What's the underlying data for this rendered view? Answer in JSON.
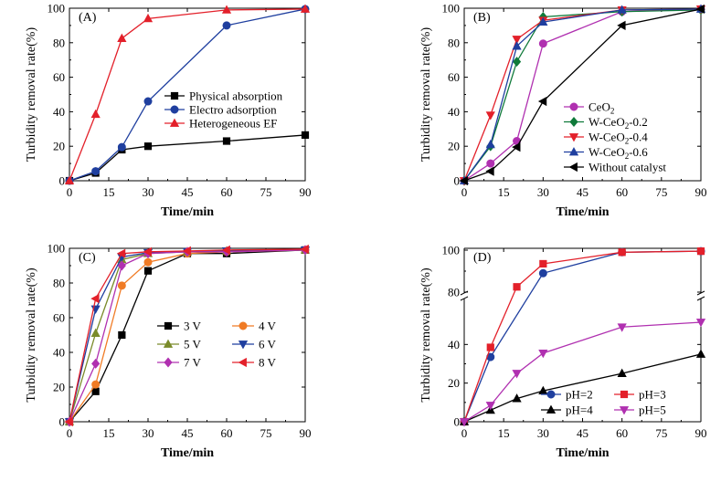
{
  "chart_data": [
    {
      "type": "line",
      "panel_label": "(A)",
      "xlabel": "Time/min",
      "ylabel": "Turbidity removal rate(%)",
      "xlim": [
        0,
        90
      ],
      "ylim": [
        0,
        100
      ],
      "xticks": [
        0,
        15,
        30,
        45,
        60,
        75,
        90
      ],
      "yticks": [
        0,
        20,
        40,
        60,
        80,
        100
      ],
      "legend_position": "center-right",
      "series": [
        {
          "name": "Physical absorption",
          "color": "#000000",
          "marker": "square",
          "x": [
            0,
            10,
            20,
            30,
            60,
            90
          ],
          "y": [
            0,
            4.5,
            18,
            20,
            23,
            26.5
          ]
        },
        {
          "name": "Electro adsorption",
          "color": "#1f3f9f",
          "marker": "circle",
          "x": [
            0,
            10,
            20,
            30,
            60,
            90
          ],
          "y": [
            0,
            5.5,
            19.5,
            46,
            90,
            99.5
          ]
        },
        {
          "name": "Heterogeneous EF",
          "color": "#e3202a",
          "marker": "triangle-up",
          "x": [
            0,
            10,
            20,
            30,
            60,
            90
          ],
          "y": [
            0,
            38.5,
            82.5,
            94,
            99,
            99.5
          ]
        }
      ]
    },
    {
      "type": "line",
      "panel_label": "(B)",
      "xlabel": "Time/min",
      "ylabel": "Turbidity removal rate(%)",
      "xlim": [
        0,
        90
      ],
      "ylim": [
        0,
        100
      ],
      "xticks": [
        0,
        15,
        30,
        45,
        60,
        75,
        90
      ],
      "yticks": [
        0,
        20,
        40,
        60,
        80,
        100
      ],
      "legend_position": "bottom-right",
      "series": [
        {
          "name": "CeO",
          "sub": "2",
          "rest": "",
          "color": "#b030b0",
          "marker": "circle",
          "x": [
            0,
            10,
            20,
            30,
            60,
            90
          ],
          "y": [
            0,
            10,
            23,
            79.5,
            98,
            99.5
          ]
        },
        {
          "name": "W-CeO",
          "sub": "2",
          "rest": "-0.2",
          "color": "#0f7a3a",
          "marker": "diamond",
          "x": [
            0,
            10,
            20,
            30,
            60,
            90
          ],
          "y": [
            0,
            20,
            69,
            95,
            98,
            99
          ]
        },
        {
          "name": "W-CeO",
          "sub": "2",
          "rest": "-0.4",
          "color": "#e3202a",
          "marker": "triangle-down",
          "x": [
            0,
            10,
            20,
            30,
            60,
            90
          ],
          "y": [
            0,
            38,
            82,
            93,
            99,
            99.5
          ]
        },
        {
          "name": "W-CeO",
          "sub": "2",
          "rest": "-0.6",
          "color": "#1f3f9f",
          "marker": "triangle-up",
          "x": [
            0,
            10,
            20,
            30,
            60,
            90
          ],
          "y": [
            0,
            21,
            78,
            92,
            99,
            99.5
          ]
        },
        {
          "name": "Without catalyst",
          "sub": "",
          "rest": "",
          "color": "#000000",
          "marker": "triangle-left",
          "x": [
            0,
            10,
            20,
            30,
            60,
            90
          ],
          "y": [
            0,
            5.5,
            19.5,
            46,
            90,
            99.5
          ]
        }
      ]
    },
    {
      "type": "line",
      "panel_label": "(C)",
      "xlabel": "Time/min",
      "ylabel": "Turbidity removal rate(%)",
      "xlim": [
        0,
        90
      ],
      "ylim": [
        0,
        100
      ],
      "xticks": [
        0,
        15,
        30,
        45,
        60,
        75,
        90
      ],
      "yticks": [
        0,
        20,
        40,
        60,
        80,
        100
      ],
      "legend_position": "center-right",
      "series": [
        {
          "name": "3 V",
          "color": "#000000",
          "marker": "square",
          "x": [
            0,
            10,
            20,
            30,
            45,
            60,
            90
          ],
          "y": [
            0,
            17.5,
            50,
            87,
            97,
            97,
            99
          ]
        },
        {
          "name": "4 V",
          "color": "#f07b25",
          "marker": "circle",
          "x": [
            0,
            10,
            20,
            30,
            45,
            60,
            90
          ],
          "y": [
            0,
            21.5,
            78.5,
            92,
            97,
            98,
            99
          ]
        },
        {
          "name": "5 V",
          "color": "#7a8b2a",
          "marker": "triangle-up",
          "x": [
            0,
            10,
            20,
            30,
            45,
            60,
            90
          ],
          "y": [
            0,
            51,
            93.5,
            97,
            98,
            98.5,
            99
          ]
        },
        {
          "name": "6 V",
          "color": "#1f3f9f",
          "marker": "triangle-down",
          "x": [
            0,
            10,
            20,
            30,
            45,
            60,
            90
          ],
          "y": [
            0,
            65,
            95,
            97.5,
            98,
            98.5,
            99
          ]
        },
        {
          "name": "7 V",
          "color": "#b030b0",
          "marker": "diamond",
          "x": [
            0,
            10,
            20,
            30,
            45,
            60,
            90
          ],
          "y": [
            0,
            33.5,
            90,
            97,
            98,
            98,
            99
          ]
        },
        {
          "name": "8 V",
          "color": "#e3202a",
          "marker": "triangle-left",
          "x": [
            0,
            10,
            20,
            30,
            45,
            60,
            90
          ],
          "y": [
            0,
            71,
            97,
            98,
            98.5,
            99,
            99.5
          ]
        }
      ]
    },
    {
      "type": "line",
      "panel_label": "(D)",
      "xlabel": "Time/min",
      "ylabel": "Turbidity removal rate(%)",
      "xlim": [
        0,
        90
      ],
      "broken_y_axis": true,
      "ylim_lower": [
        0,
        60
      ],
      "ylim_upper": [
        80,
        100
      ],
      "xticks": [
        0,
        15,
        30,
        45,
        60,
        75,
        90
      ],
      "yticks_lower": [
        0,
        20,
        40
      ],
      "yticks_upper": [
        80,
        100
      ],
      "legend_position": "bottom-right",
      "series": [
        {
          "name": "pH=2",
          "color": "#1f3f9f",
          "marker": "circle",
          "x": [
            0,
            10,
            30,
            60,
            90
          ],
          "y": [
            0,
            33.5,
            89,
            99,
            99.5
          ]
        },
        {
          "name": "pH=3",
          "color": "#e3202a",
          "marker": "square",
          "x": [
            0,
            10,
            20,
            30,
            60,
            90
          ],
          "y": [
            0,
            38.5,
            82.5,
            93.5,
            99,
            99.5
          ]
        },
        {
          "name": "pH=4",
          "color": "#000000",
          "marker": "triangle-up",
          "x": [
            0,
            10,
            20,
            30,
            60,
            90
          ],
          "y": [
            0,
            6,
            12,
            16,
            25,
            35
          ]
        },
        {
          "name": "pH=5",
          "color": "#b030b0",
          "marker": "triangle-down",
          "x": [
            0,
            10,
            20,
            30,
            60,
            90
          ],
          "y": [
            0,
            8.5,
            25,
            35.5,
            49,
            51.5
          ]
        }
      ]
    }
  ]
}
